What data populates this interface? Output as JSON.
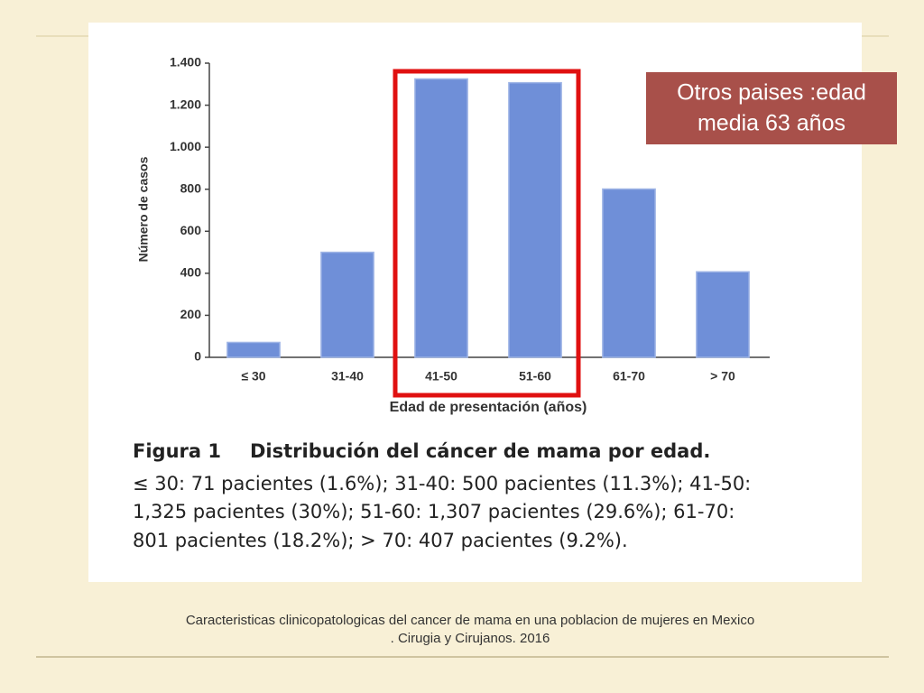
{
  "chart_data": {
    "type": "bar",
    "y_label": "Número de casos",
    "x_label": "Edad de presentación (años)",
    "categories": [
      "≤ 30",
      "31-40",
      "41-50",
      "51-60",
      "61-70",
      "> 70"
    ],
    "values": [
      71,
      500,
      1325,
      1307,
      801,
      407
    ],
    "color": "#6f8fd8",
    "ylim": [
      0,
      1400
    ],
    "yticks": [
      0,
      200,
      400,
      600,
      800,
      {
        "value": 1000,
        "label": "1.000"
      },
      {
        "value": 1200,
        "label": "1.200"
      },
      {
        "value": 1400,
        "label": "1.400"
      }
    ],
    "grid": false
  },
  "annotation": {
    "lines": [
      "Otros paises :edad",
      "media 63 años"
    ]
  },
  "figure_caption": {
    "label": "Figura 1",
    "title": "Distribución del cáncer de mama por edad.",
    "lines": [
      "≤ 30: 71 pacientes (1.6%); 31-40: 500 pacientes (11.3%); 41-50:",
      "1,325 pacientes (30%); 51-60: 1,307 pacientes (29.6%); 61-70:",
      "801 pacientes (18.2%); > 70: 407 pacientes (9.2%)."
    ]
  },
  "source": {
    "lines": [
      "Caracteristicas clinicopatologicas del cancer de mama en una poblacion de mujeres en Mexico",
      ". Cirugia y Cirujanos. 2016"
    ]
  }
}
